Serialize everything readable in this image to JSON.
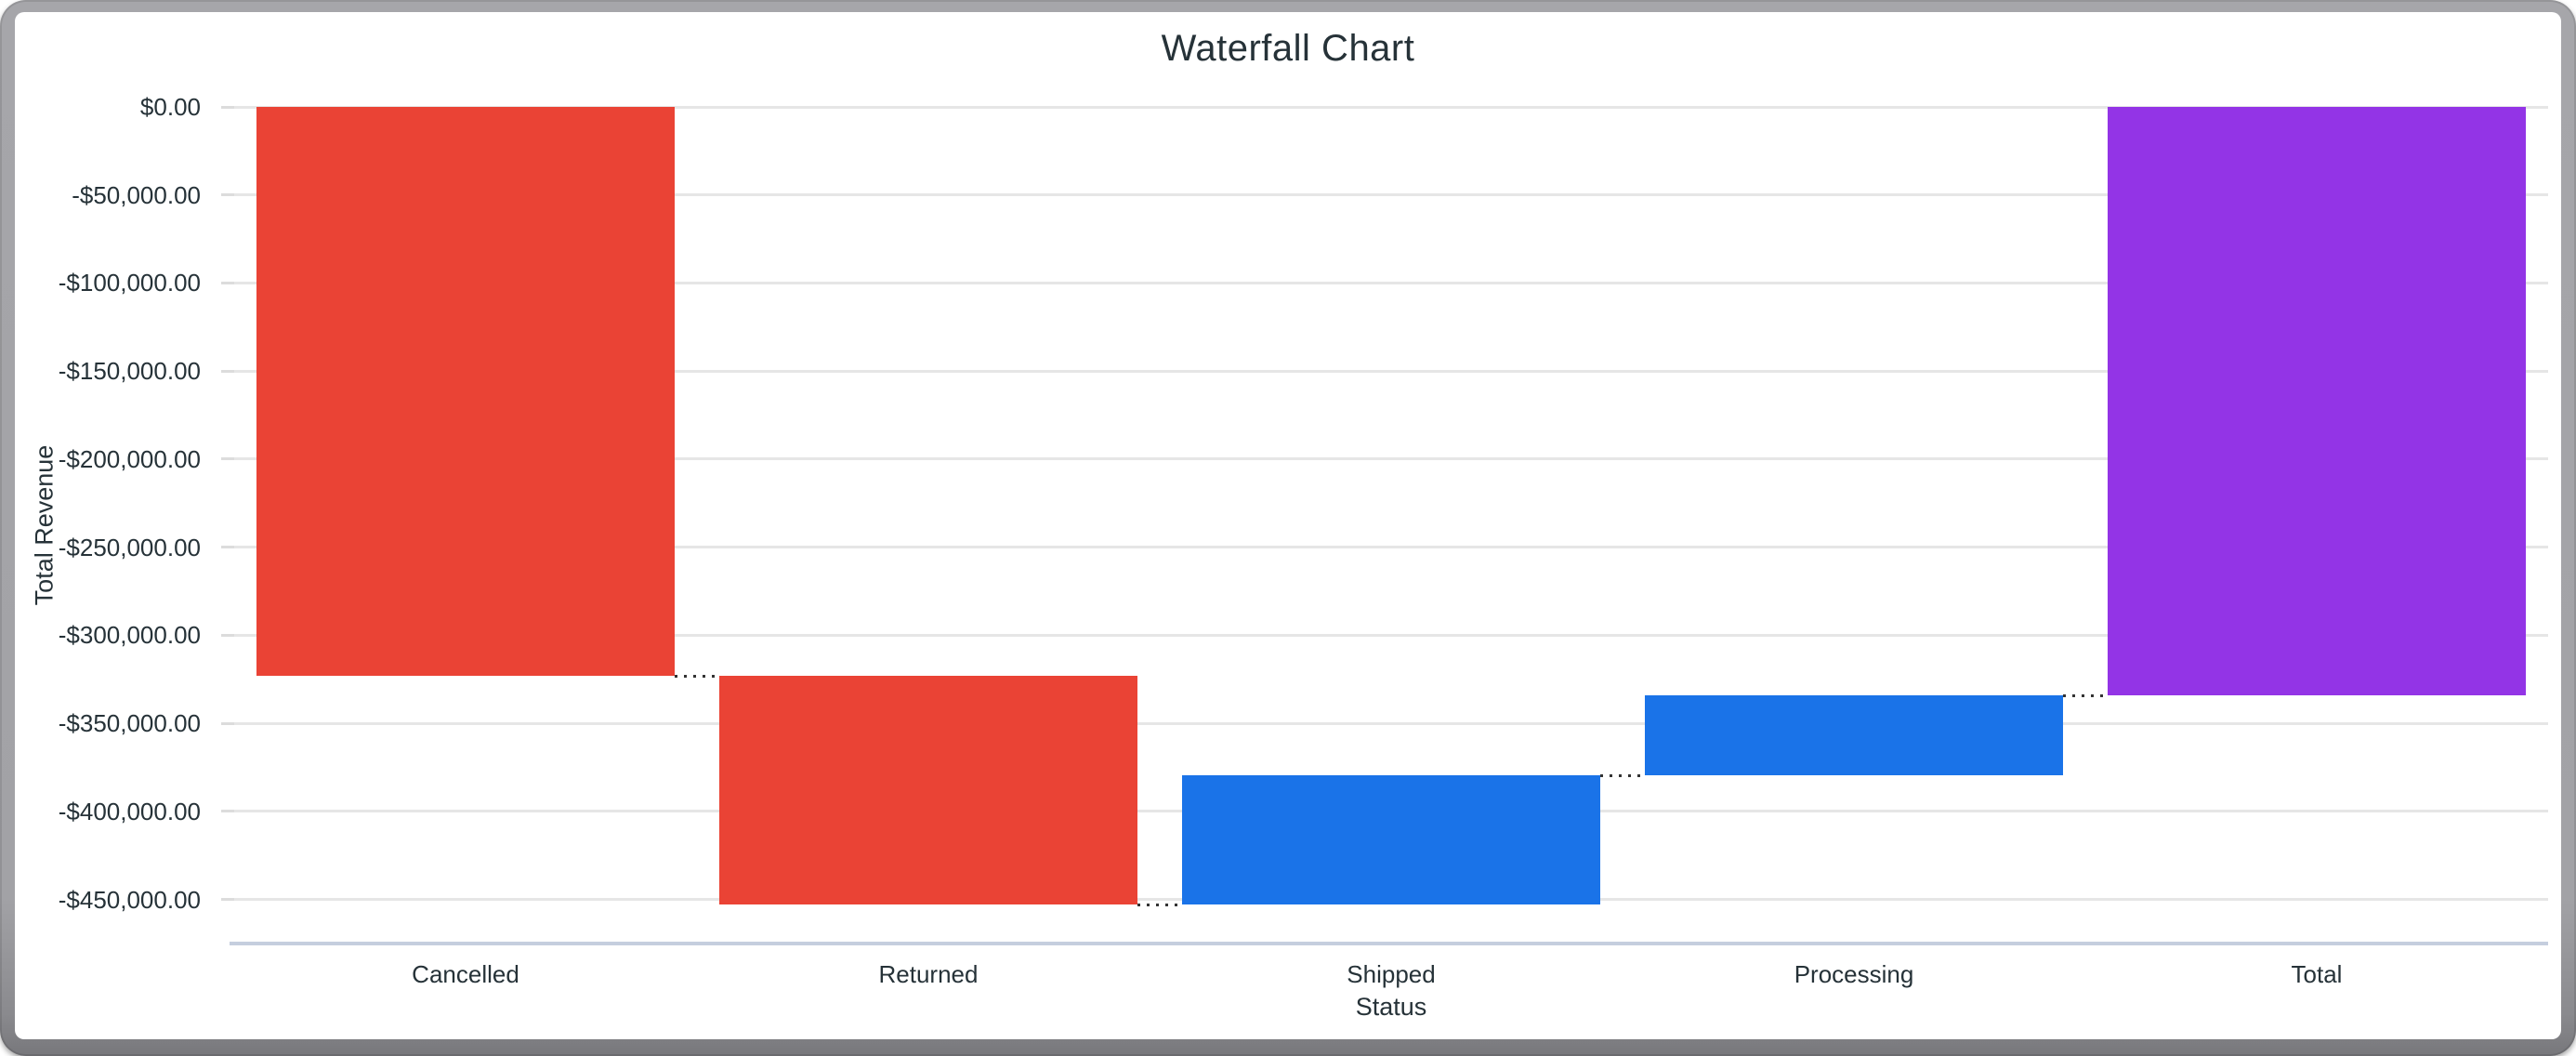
{
  "window": {
    "frame_color": "#a2a2a6",
    "background_color": "#ffffff"
  },
  "chart_data": {
    "type": "bar",
    "subtype": "waterfall",
    "title": "Waterfall Chart",
    "xlabel": "Status",
    "ylabel": "Total Revenue",
    "categories": [
      "Cancelled",
      "Returned",
      "Shipped",
      "Processing",
      "Total"
    ],
    "values": [
      -323000,
      -130000,
      73400,
      45400,
      -334200
    ],
    "series": [
      {
        "name": "Cancelled",
        "start": 0,
        "end": -323000,
        "role": "negative"
      },
      {
        "name": "Returned",
        "start": -323000,
        "end": -453000,
        "role": "negative"
      },
      {
        "name": "Shipped",
        "start": -453000,
        "end": -379600,
        "role": "positive"
      },
      {
        "name": "Processing",
        "start": -379600,
        "end": -334200,
        "role": "positive"
      },
      {
        "name": "Total",
        "start": 0,
        "end": -334200,
        "role": "total"
      }
    ],
    "y_ticks": [
      {
        "value": 0,
        "label": "$0.00"
      },
      {
        "value": -50000,
        "label": "-$50,000.00"
      },
      {
        "value": -100000,
        "label": "-$100,000.00"
      },
      {
        "value": -150000,
        "label": "-$150,000.00"
      },
      {
        "value": -200000,
        "label": "-$200,000.00"
      },
      {
        "value": -250000,
        "label": "-$250,000.00"
      },
      {
        "value": -300000,
        "label": "-$300,000.00"
      },
      {
        "value": -350000,
        "label": "-$350,000.00"
      },
      {
        "value": -400000,
        "label": "-$400,000.00"
      },
      {
        "value": -450000,
        "label": "-$450,000.00"
      }
    ],
    "ylim": [
      -475000,
      0
    ],
    "grid": true,
    "legend_position": "none",
    "colors": {
      "negative": "#ea4335",
      "positive": "#1a73e8",
      "total": "#9334e6",
      "gridline": "#e6e6e6",
      "axis_line": "#c5cede",
      "connector": "#333333",
      "text": "#263238"
    }
  }
}
